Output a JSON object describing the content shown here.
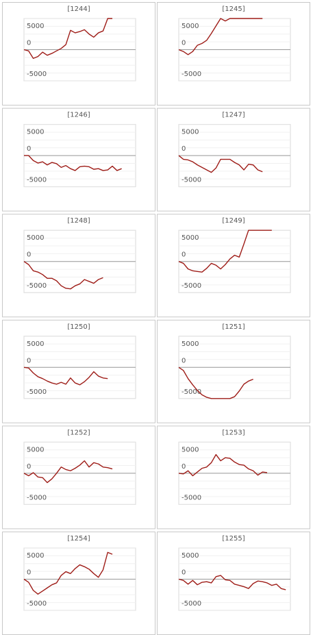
{
  "chart_data": [
    {
      "type": "line",
      "title": "[1244]",
      "color": "#9e1c17",
      "ylim": [
        -5000,
        5000
      ],
      "yticks": [
        -5000,
        0,
        5000
      ],
      "values": [
        0,
        -200,
        -1400,
        -1100,
        -400,
        -900,
        -600,
        -200,
        200,
        800,
        3100,
        2700,
        2900,
        3200,
        2500,
        2000,
        2700,
        3000,
        5000,
        5000
      ]
    },
    {
      "type": "line",
      "title": "[1245]",
      "color": "#9e1c17",
      "ylim": [
        -5000,
        5000
      ],
      "yticks": [
        -5000,
        0,
        5000
      ],
      "values": [
        0,
        -300,
        -800,
        -300,
        700,
        1000,
        1500,
        2600,
        3800,
        5000,
        4600,
        5000,
        5000,
        5000,
        5000,
        5000,
        5000,
        5000,
        5000
      ]
    },
    {
      "type": "line",
      "title": "[1246]",
      "color": "#9e1c17",
      "ylim": [
        -5000,
        5000
      ],
      "yticks": [
        -5000,
        0,
        5000
      ],
      "values": [
        0,
        0,
        -800,
        -1200,
        -1000,
        -1500,
        -1100,
        -1300,
        -1900,
        -1600,
        -2100,
        -2400,
        -1800,
        -1700,
        -1800,
        -2200,
        -2100,
        -2400,
        -2300,
        -1700,
        -2400,
        -2100
      ]
    },
    {
      "type": "line",
      "title": "[1247]",
      "color": "#9e1c17",
      "ylim": [
        -5000,
        5000
      ],
      "yticks": [
        -5000,
        0,
        5000
      ],
      "values": [
        0,
        -600,
        -700,
        -1000,
        -1500,
        -1900,
        -2300,
        -2700,
        -2000,
        -600,
        -600,
        -600,
        -1100,
        -1500,
        -2300,
        -1400,
        -1500,
        -2300,
        -2600
      ]
    },
    {
      "type": "line",
      "title": "[1248]",
      "color": "#9e1c17",
      "ylim": [
        -5000,
        5000
      ],
      "yticks": [
        -5000,
        0,
        5000
      ],
      "values": [
        0,
        -500,
        -1500,
        -1700,
        -2100,
        -2700,
        -2700,
        -3100,
        -3900,
        -4300,
        -4400,
        -3900,
        -3600,
        -2900,
        -3200,
        -3500,
        -2900,
        -2600
      ]
    },
    {
      "type": "line",
      "title": "[1249]",
      "color": "#9e1c17",
      "ylim": [
        -5000,
        5000
      ],
      "yticks": [
        -5000,
        0,
        5000
      ],
      "values": [
        0,
        -300,
        -1200,
        -1500,
        -1600,
        -1700,
        -1100,
        -300,
        -600,
        -1200,
        -500,
        400,
        1000,
        700,
        2800,
        5000,
        5000,
        5000,
        5000,
        5000,
        5000
      ]
    },
    {
      "type": "line",
      "title": "[1250]",
      "color": "#9e1c17",
      "ylim": [
        -5000,
        5000
      ],
      "yticks": [
        -5000,
        0,
        5000
      ],
      "values": [
        0,
        -100,
        -900,
        -1500,
        -1800,
        -2200,
        -2500,
        -2700,
        -2400,
        -2700,
        -1700,
        -2500,
        -2800,
        -2300,
        -1600,
        -700,
        -1400,
        -1700,
        -1800
      ]
    },
    {
      "type": "line",
      "title": "[1251]",
      "color": "#9e1c17",
      "ylim": [
        -5000,
        5000
      ],
      "yticks": [
        -5000,
        0,
        5000
      ],
      "values": [
        0,
        -500,
        -1800,
        -2800,
        -3700,
        -4400,
        -4800,
        -5000,
        -5000,
        -5000,
        -5000,
        -5000,
        -4700,
        -3800,
        -2700,
        -2200,
        -1900
      ]
    },
    {
      "type": "line",
      "title": "[1252]",
      "color": "#9e1c17",
      "ylim": [
        -5000,
        5000
      ],
      "yticks": [
        -5000,
        0,
        5000
      ],
      "values": [
        0,
        -400,
        100,
        -600,
        -700,
        -1500,
        -900,
        0,
        1000,
        600,
        400,
        800,
        1300,
        2000,
        1000,
        1700,
        1500,
        1000,
        900,
        700
      ]
    },
    {
      "type": "line",
      "title": "[1253]",
      "color": "#9e1c17",
      "ylim": [
        -5000,
        5000
      ],
      "yticks": [
        -5000,
        0,
        5000
      ],
      "values": [
        0,
        -100,
        400,
        -400,
        200,
        800,
        1000,
        1700,
        3000,
        2000,
        2500,
        2400,
        1800,
        1400,
        1300,
        700,
        400,
        -300,
        200,
        100
      ]
    },
    {
      "type": "line",
      "title": "[1254]",
      "color": "#9e1c17",
      "ylim": [
        -5000,
        5000
      ],
      "yticks": [
        -5000,
        0,
        5000
      ],
      "values": [
        0,
        -500,
        -1800,
        -2400,
        -1900,
        -1400,
        -900,
        -600,
        600,
        1200,
        900,
        1700,
        2300,
        2000,
        1600,
        900,
        300,
        1500,
        4300,
        4000
      ]
    },
    {
      "type": "line",
      "title": "[1255]",
      "color": "#9e1c17",
      "ylim": [
        -5000,
        5000
      ],
      "yticks": [
        -5000,
        0,
        5000
      ],
      "values": [
        0,
        -200,
        -800,
        -200,
        -900,
        -500,
        -400,
        -600,
        400,
        600,
        -100,
        -200,
        -800,
        -1000,
        -1200,
        -1500,
        -700,
        -300,
        -400,
        -600,
        -1000,
        -800,
        -1500,
        -1700
      ]
    }
  ]
}
